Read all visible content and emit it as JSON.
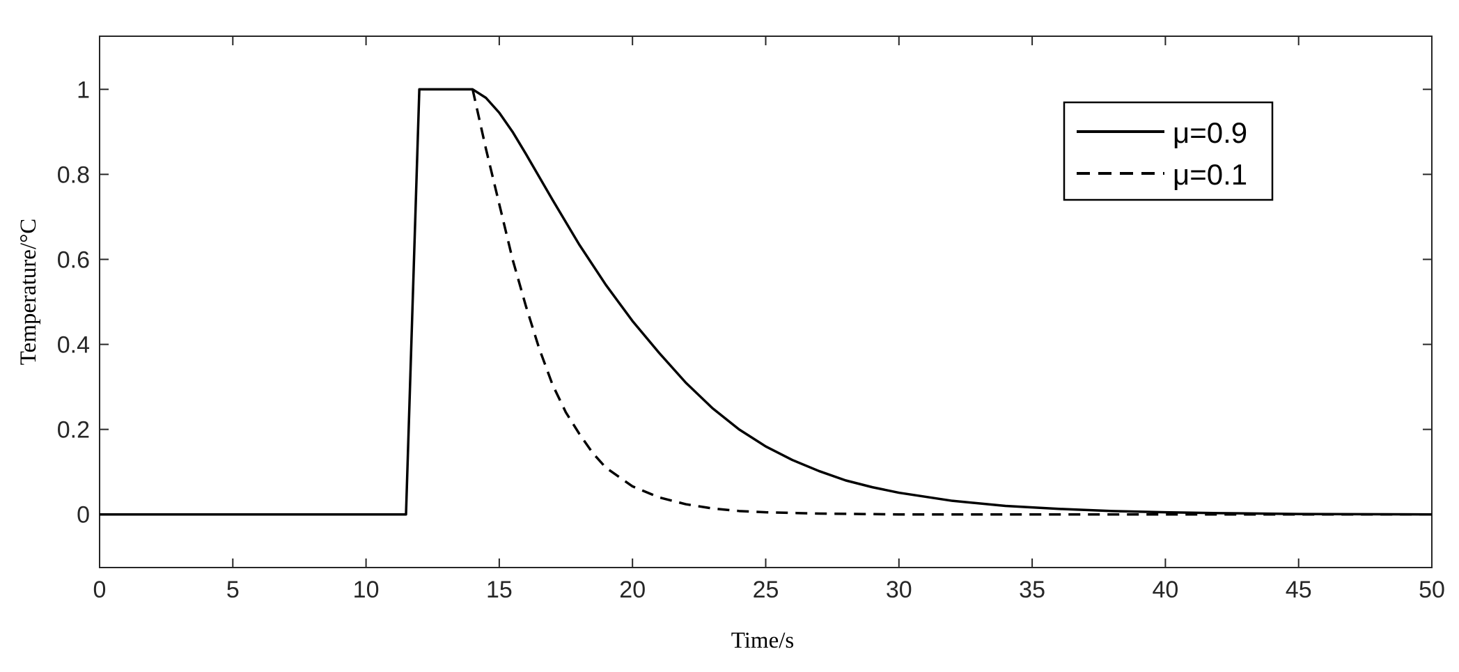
{
  "chart_data": {
    "type": "line",
    "title": "",
    "xlabel": "Time/s",
    "ylabel": "Temperature/°C",
    "xlim": [
      0,
      50
    ],
    "ylim": [
      -0.125,
      1.125
    ],
    "xticks": [
      0,
      5,
      10,
      15,
      20,
      25,
      30,
      35,
      40,
      45,
      50
    ],
    "yticks": [
      0,
      0.2,
      0.4,
      0.6,
      0.8,
      1
    ],
    "xtick_labels": [
      "0",
      "5",
      "10",
      "15",
      "20",
      "25",
      "30",
      "35",
      "40",
      "45",
      "50"
    ],
    "ytick_labels": [
      "0",
      "0.2",
      "0.4",
      "0.6",
      "0.8",
      "1"
    ],
    "grid": false,
    "legend_position": "top-right",
    "series": [
      {
        "name": "μ=0.9",
        "style": "solid",
        "color": "#000000",
        "points": [
          [
            0,
            0
          ],
          [
            11.5,
            0
          ],
          [
            12.0,
            1.0
          ],
          [
            14.0,
            1.0
          ],
          [
            14.5,
            0.98
          ],
          [
            15.0,
            0.945
          ],
          [
            15.5,
            0.9
          ],
          [
            16.0,
            0.848
          ],
          [
            17.0,
            0.74
          ],
          [
            18.0,
            0.635
          ],
          [
            19.0,
            0.54
          ],
          [
            20.0,
            0.455
          ],
          [
            21.0,
            0.38
          ],
          [
            22.0,
            0.31
          ],
          [
            23.0,
            0.25
          ],
          [
            24.0,
            0.2
          ],
          [
            25.0,
            0.16
          ],
          [
            26.0,
            0.128
          ],
          [
            27.0,
            0.102
          ],
          [
            28.0,
            0.08
          ],
          [
            29.0,
            0.064
          ],
          [
            30.0,
            0.051
          ],
          [
            32.0,
            0.032
          ],
          [
            34.0,
            0.02
          ],
          [
            36.0,
            0.013
          ],
          [
            38.0,
            0.008
          ],
          [
            40.0,
            0.005
          ],
          [
            42.0,
            0.003
          ],
          [
            45.0,
            0.001
          ],
          [
            50.0,
            0.0
          ]
        ]
      },
      {
        "name": "μ=0.1",
        "style": "dashed",
        "color": "#000000",
        "points": [
          [
            14.0,
            1.0
          ],
          [
            14.5,
            0.86
          ],
          [
            15.0,
            0.73
          ],
          [
            15.5,
            0.6
          ],
          [
            16.0,
            0.49
          ],
          [
            16.5,
            0.39
          ],
          [
            17.0,
            0.305
          ],
          [
            17.5,
            0.24
          ],
          [
            18.0,
            0.19
          ],
          [
            18.5,
            0.145
          ],
          [
            19.0,
            0.11
          ],
          [
            20.0,
            0.066
          ],
          [
            21.0,
            0.04
          ],
          [
            22.0,
            0.024
          ],
          [
            23.0,
            0.014
          ],
          [
            24.0,
            0.008
          ],
          [
            25.0,
            0.005
          ],
          [
            27.0,
            0.002
          ],
          [
            30.0,
            0.0
          ],
          [
            35.0,
            0.0
          ],
          [
            40.0,
            0.0
          ],
          [
            45.0,
            0.0
          ],
          [
            50.0,
            0.0
          ]
        ]
      }
    ]
  }
}
